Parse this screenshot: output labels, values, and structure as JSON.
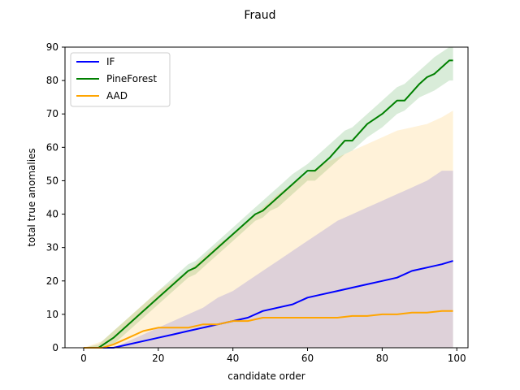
{
  "chart_data": {
    "type": "line",
    "title": "Fraud",
    "xlabel": "candidate order",
    "ylabel": "total true anomalies",
    "xlim": [
      -5,
      103
    ],
    "ylim": [
      0,
      90
    ],
    "xticks": [
      0,
      20,
      40,
      60,
      80,
      100
    ],
    "yticks": [
      0,
      10,
      20,
      30,
      40,
      50,
      60,
      70,
      80,
      90
    ],
    "grid": false,
    "legend": "top-left",
    "series": [
      {
        "name": "IF",
        "color": "#0000ff",
        "x": [
          0,
          5,
          8,
          12,
          16,
          20,
          24,
          28,
          32,
          36,
          40,
          44,
          48,
          52,
          56,
          60,
          64,
          68,
          72,
          76,
          80,
          84,
          88,
          92,
          96,
          99
        ],
        "values": [
          0,
          0,
          0,
          1,
          2,
          3,
          4,
          5,
          6,
          7,
          8,
          9,
          11,
          12,
          13,
          15,
          16,
          17,
          18,
          19,
          20,
          21,
          23,
          24,
          25,
          26
        ],
        "band_lower": [
          0,
          0,
          0,
          0,
          0,
          0,
          0,
          0,
          0,
          0,
          0,
          0,
          0,
          0,
          0,
          0,
          0,
          0,
          0,
          0,
          0,
          0,
          0,
          0,
          0,
          0
        ],
        "band_upper": [
          0,
          0,
          0,
          2,
          4,
          6,
          8,
          10,
          12,
          15,
          17,
          20,
          23,
          26,
          29,
          32,
          35,
          38,
          40,
          42,
          44,
          46,
          48,
          50,
          53,
          53
        ]
      },
      {
        "name": "PineForest",
        "color": "#008000",
        "x": [
          0,
          4,
          8,
          12,
          16,
          20,
          24,
          28,
          30,
          34,
          38,
          42,
          46,
          48,
          50,
          52,
          56,
          60,
          62,
          66,
          70,
          72,
          76,
          80,
          84,
          86,
          90,
          92,
          94,
          98,
          99
        ],
        "values": [
          0,
          0,
          3,
          7,
          11,
          15,
          19,
          23,
          24,
          28,
          32,
          36,
          40,
          41,
          43,
          45,
          49,
          53,
          53,
          57,
          62,
          62,
          67,
          70,
          74,
          74,
          79,
          81,
          82,
          86,
          86
        ],
        "band_lower": [
          0,
          0,
          1,
          5,
          9,
          13,
          17,
          21,
          22,
          26,
          30,
          34,
          38,
          39,
          41,
          42,
          46,
          50,
          50,
          54,
          58,
          59,
          63,
          66,
          70,
          71,
          75,
          76,
          77,
          80,
          80
        ],
        "band_upper": [
          0,
          1,
          5,
          9,
          13,
          17,
          21,
          25,
          26,
          30,
          34,
          38,
          42,
          44,
          46,
          48,
          52,
          55,
          57,
          61,
          65,
          66,
          70,
          74,
          78,
          79,
          83,
          85,
          87,
          90,
          90
        ]
      },
      {
        "name": "AAD",
        "color": "#ffa500",
        "x": [
          0,
          5,
          8,
          12,
          16,
          20,
          24,
          28,
          32,
          36,
          40,
          44,
          48,
          52,
          56,
          60,
          64,
          68,
          72,
          76,
          80,
          84,
          88,
          92,
          96,
          99
        ],
        "values": [
          0,
          0,
          1,
          3,
          5,
          6,
          6,
          6,
          7,
          7,
          8,
          8,
          9,
          9,
          9,
          9,
          9,
          9,
          9.5,
          9.5,
          10,
          10,
          10.5,
          10.5,
          11,
          11
        ],
        "band_lower": [
          0,
          0,
          0,
          0,
          0,
          0,
          0,
          0,
          0,
          0,
          0,
          0,
          0,
          0,
          0,
          0,
          0,
          0,
          0,
          0,
          0,
          0,
          0,
          0,
          0,
          0
        ],
        "band_upper": [
          0,
          2,
          5,
          9,
          13,
          17,
          20,
          23,
          27,
          31,
          34,
          38,
          42,
          46,
          49,
          52,
          55,
          57,
          59,
          61,
          63,
          65,
          66,
          67,
          69,
          71
        ]
      }
    ]
  }
}
